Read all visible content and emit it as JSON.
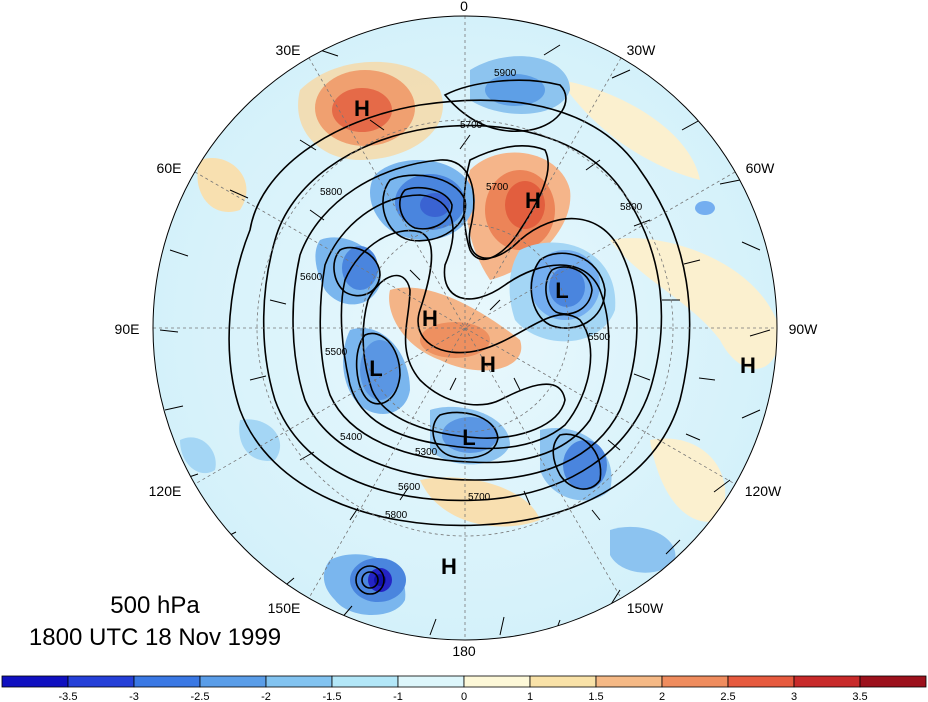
{
  "map": {
    "projection": "north-polar-stereographic",
    "longitude_labels": [
      "0",
      "30W",
      "60W",
      "90W",
      "120W",
      "150W",
      "180",
      "150E",
      "120E",
      "90E",
      "60E",
      "30E"
    ],
    "centers": [
      {
        "type": "H",
        "name": "high-1"
      },
      {
        "type": "H",
        "name": "high-2"
      },
      {
        "type": "H",
        "name": "high-3"
      },
      {
        "type": "H",
        "name": "high-4"
      },
      {
        "type": "H",
        "name": "high-5"
      },
      {
        "type": "H",
        "name": "high-6"
      },
      {
        "type": "L",
        "name": "low-1"
      },
      {
        "type": "L",
        "name": "low-2"
      },
      {
        "type": "L",
        "name": "low-3"
      }
    ],
    "contour_labels": [
      "5900",
      "5700",
      "5800",
      "5600",
      "5500",
      "5400",
      "5300",
      "5600",
      "5700",
      "5800",
      "5700",
      "5500",
      "5800"
    ],
    "colors": {
      "neg_strong": "#1a18c8",
      "neg": "#3a6fe0",
      "neg_mid": "#74aef0",
      "neg_weak": "#a9dcf7",
      "neutral_cool": "#d8f3fb",
      "neutral_warm": "#fbf1d0",
      "pos_weak": "#f7d59d",
      "pos": "#f2a46f",
      "pos_strong": "#e85d3c",
      "pos_max": "#a31522"
    }
  },
  "title": {
    "level": "500 hPa",
    "time": "1800 UTC 18 Nov 1999"
  },
  "colorbar": {
    "colors": [
      "#1010c0",
      "#2540d8",
      "#3a78e4",
      "#5a9de8",
      "#82c3f0",
      "#b3e7f8",
      "#ddf6fb",
      "#fdf8d8",
      "#f9e2a8",
      "#f5b986",
      "#ef8c5e",
      "#e65a3e",
      "#c82a2a",
      "#9c111c"
    ],
    "ticks": [
      "-3.5",
      "-3",
      "-2.5",
      "-2",
      "-1.5",
      "-1",
      "0",
      "1",
      "1.5",
      "2",
      "2.5",
      "3",
      "3.5"
    ]
  }
}
